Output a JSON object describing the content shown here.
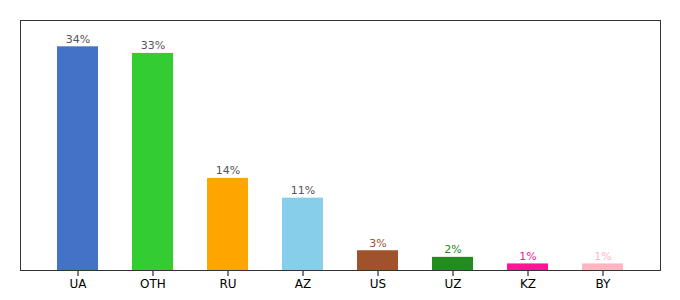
{
  "chart_data": {
    "type": "bar",
    "categories": [
      "UA",
      "OTH",
      "RU",
      "AZ",
      "US",
      "UZ",
      "KZ",
      "BY"
    ],
    "values": [
      34,
      33,
      14,
      11,
      3,
      2,
      1,
      1
    ],
    "value_labels": [
      "34%",
      "33%",
      "14%",
      "11%",
      "3%",
      "2%",
      "1%",
      "1%"
    ],
    "label_colors": [
      "#555555",
      "#555555",
      "#555555",
      "#555555",
      "#A0522D",
      "#228B22",
      "#FF1493",
      "#FFB6C1"
    ],
    "colors": [
      "#4472C4",
      "#33CC33",
      "#FFA500",
      "#87CEEB",
      "#A0522D",
      "#228B22",
      "#FF1493",
      "#FFB6C1"
    ],
    "ylim": [
      0,
      38
    ],
    "data_labels": true,
    "tick_labels": "x"
  }
}
